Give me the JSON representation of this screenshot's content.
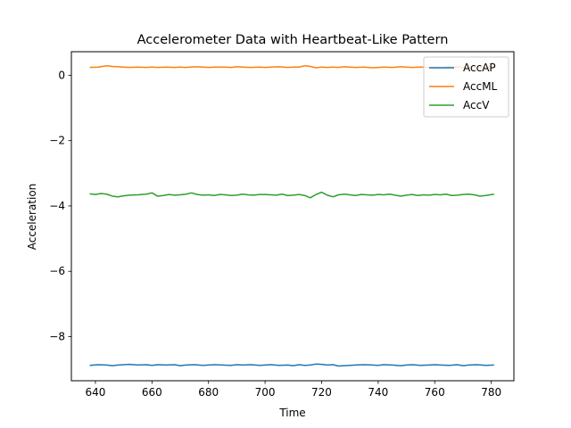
{
  "chart_data": {
    "type": "line",
    "title": "Accelerometer Data with Heartbeat-Like Pattern",
    "xlabel": "Time",
    "ylabel": "Acceleration",
    "xlim": [
      631.5,
      788
    ],
    "ylim": [
      -9.35,
      0.72
    ],
    "xticks": [
      640,
      660,
      680,
      700,
      720,
      740,
      760,
      780
    ],
    "yticks": [
      0,
      -2,
      -4,
      -6,
      -8
    ],
    "ytick_labels": [
      "0",
      "−2",
      "−4",
      "−6",
      "−8"
    ],
    "legend_position": "top-right",
    "grid": false,
    "series": [
      {
        "name": "AccAP",
        "color": "#1f77b4",
        "x": [
          638,
          641,
          644,
          646,
          648,
          650,
          652,
          655,
          658,
          660,
          662,
          665,
          668,
          670,
          672,
          675,
          678,
          680,
          682,
          685,
          688,
          690,
          692,
          695,
          698,
          700,
          702,
          705,
          708,
          710,
          712,
          714,
          716,
          718,
          720,
          722,
          724,
          726,
          728,
          730,
          732,
          735,
          738,
          740,
          742,
          745,
          748,
          750,
          752,
          755,
          758,
          760,
          762,
          765,
          768,
          770,
          772,
          775,
          778,
          781
        ],
        "y": [
          -8.88,
          -8.86,
          -8.87,
          -8.89,
          -8.87,
          -8.86,
          -8.85,
          -8.87,
          -8.86,
          -8.88,
          -8.86,
          -8.87,
          -8.86,
          -8.89,
          -8.87,
          -8.86,
          -8.88,
          -8.87,
          -8.86,
          -8.87,
          -8.88,
          -8.86,
          -8.87,
          -8.86,
          -8.88,
          -8.87,
          -8.86,
          -8.88,
          -8.87,
          -8.89,
          -8.86,
          -8.88,
          -8.87,
          -8.84,
          -8.85,
          -8.87,
          -8.86,
          -8.9,
          -8.89,
          -8.88,
          -8.87,
          -8.86,
          -8.87,
          -8.88,
          -8.86,
          -8.87,
          -8.89,
          -8.87,
          -8.86,
          -8.88,
          -8.87,
          -8.86,
          -8.87,
          -8.88,
          -8.86,
          -8.89,
          -8.87,
          -8.86,
          -8.88,
          -8.87
        ]
      },
      {
        "name": "AccML",
        "color": "#ff7f0e",
        "x": [
          638,
          641,
          644,
          646,
          648,
          650,
          652,
          655,
          658,
          660,
          662,
          665,
          668,
          670,
          672,
          675,
          678,
          680,
          682,
          685,
          688,
          690,
          692,
          695,
          698,
          700,
          702,
          705,
          708,
          710,
          712,
          714,
          716,
          718,
          720,
          722,
          724,
          726,
          728,
          730,
          732,
          735,
          738,
          740,
          742,
          745,
          748,
          750,
          752,
          755,
          758,
          760,
          762,
          765,
          768,
          770,
          772,
          775,
          778,
          781
        ],
        "y": [
          0.24,
          0.25,
          0.29,
          0.27,
          0.26,
          0.25,
          0.24,
          0.25,
          0.24,
          0.25,
          0.24,
          0.25,
          0.24,
          0.25,
          0.24,
          0.26,
          0.25,
          0.24,
          0.25,
          0.25,
          0.24,
          0.26,
          0.25,
          0.24,
          0.25,
          0.24,
          0.25,
          0.26,
          0.24,
          0.25,
          0.25,
          0.29,
          0.27,
          0.23,
          0.25,
          0.24,
          0.25,
          0.24,
          0.26,
          0.25,
          0.24,
          0.25,
          0.23,
          0.24,
          0.25,
          0.24,
          0.26,
          0.25,
          0.24,
          0.25,
          0.24,
          0.25,
          0.24,
          0.26,
          0.25,
          0.24,
          0.25,
          0.24,
          0.25,
          0.26
        ]
      },
      {
        "name": "AccV",
        "color": "#2ca02c",
        "x": [
          638,
          640,
          642,
          644,
          646,
          648,
          650,
          652,
          655,
          658,
          660,
          662,
          664,
          666,
          668,
          670,
          672,
          674,
          676,
          678,
          680,
          682,
          684,
          686,
          688,
          690,
          692,
          694,
          696,
          698,
          700,
          702,
          704,
          706,
          708,
          710,
          712,
          714,
          716,
          718,
          720,
          722,
          724,
          726,
          728,
          730,
          732,
          734,
          736,
          738,
          740,
          742,
          744,
          746,
          748,
          750,
          752,
          754,
          756,
          758,
          760,
          762,
          764,
          766,
          768,
          770,
          772,
          774,
          776,
          778,
          781
        ],
        "y": [
          -3.63,
          -3.65,
          -3.62,
          -3.64,
          -3.7,
          -3.72,
          -3.69,
          -3.67,
          -3.66,
          -3.64,
          -3.6,
          -3.7,
          -3.68,
          -3.65,
          -3.67,
          -3.66,
          -3.64,
          -3.6,
          -3.65,
          -3.67,
          -3.66,
          -3.68,
          -3.65,
          -3.66,
          -3.68,
          -3.67,
          -3.64,
          -3.66,
          -3.67,
          -3.65,
          -3.65,
          -3.66,
          -3.67,
          -3.64,
          -3.68,
          -3.67,
          -3.65,
          -3.68,
          -3.75,
          -3.65,
          -3.58,
          -3.67,
          -3.72,
          -3.66,
          -3.64,
          -3.66,
          -3.68,
          -3.65,
          -3.66,
          -3.67,
          -3.65,
          -3.66,
          -3.64,
          -3.67,
          -3.7,
          -3.67,
          -3.65,
          -3.68,
          -3.66,
          -3.67,
          -3.65,
          -3.66,
          -3.64,
          -3.68,
          -3.67,
          -3.65,
          -3.64,
          -3.66,
          -3.7,
          -3.68,
          -3.64
        ]
      }
    ]
  }
}
